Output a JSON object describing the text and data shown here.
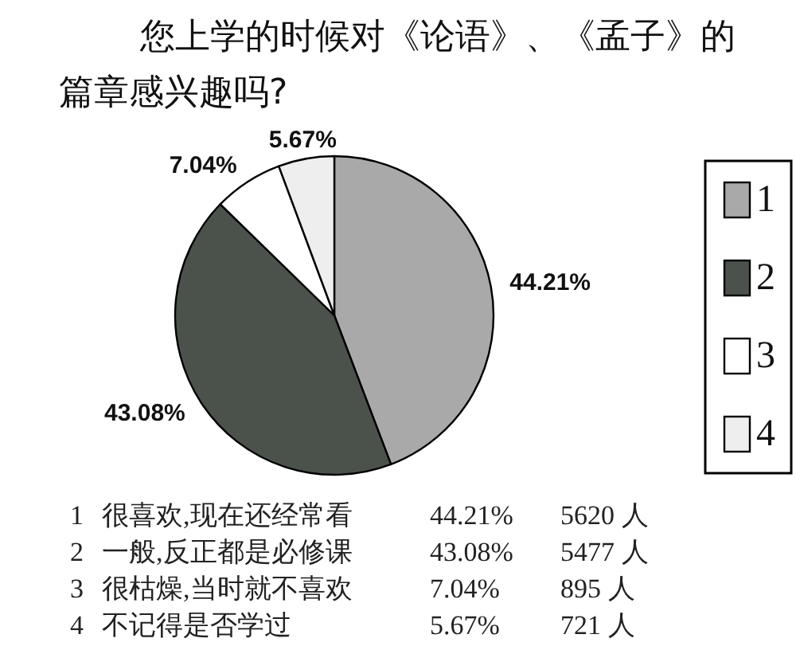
{
  "chart_data": {
    "type": "pie",
    "title": "您上学的时候对《论语》、《孟子》的篇章感兴趣吗?",
    "categories": [
      "1",
      "2",
      "3",
      "4"
    ],
    "values": [
      44.21,
      43.08,
      7.04,
      5.67
    ],
    "colors": [
      "#a9a9a9",
      "#4b524b",
      "#ffffff",
      "#eeeeee"
    ],
    "value_labels": [
      "44.21%",
      "43.08%",
      "7.04%",
      "5.67%"
    ],
    "legend": "right",
    "annotations": [
      "很喜欢,现在还经常看",
      "5620 人",
      "一般,反正都是必修课",
      "5477 人",
      "很枯燥,当时就不喜欢",
      "895 人",
      "不记得是否学过",
      "721 人"
    ]
  }
}
